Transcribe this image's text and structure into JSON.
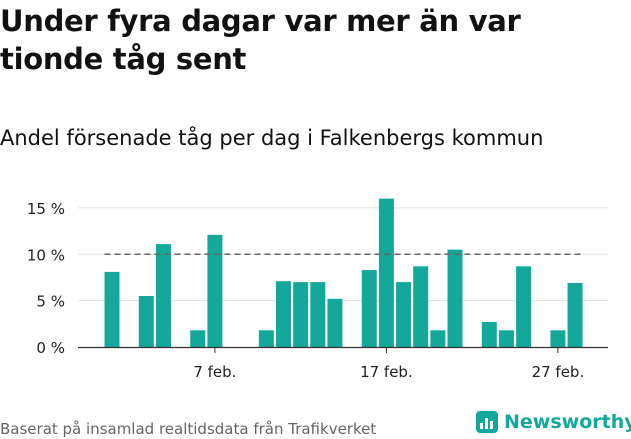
{
  "title": "Under fyra dagar var mer än var tionde tåg sent",
  "subtitle": "Andel försenade tåg per dag i Falkenbergs kommun",
  "source": "Baserat på insamlad realtidsdata från Trafikverket",
  "brand": {
    "name": "Newsworthy",
    "icon": "newsworthy-chart-icon"
  },
  "colors": {
    "bar": "#14a89a",
    "threshold": "#666666",
    "grid": "#e3e3e3",
    "axis": "#333333",
    "brand": "#14a89a"
  },
  "chart_data": {
    "type": "bar",
    "title": "Andel försenade tåg per dag i Falkenbergs kommun",
    "x": [
      "2/1",
      "2/2",
      "2/3",
      "2/4",
      "2/5",
      "2/6",
      "2/7",
      "2/8",
      "2/9",
      "2/10",
      "2/11",
      "2/12",
      "2/13",
      "2/14",
      "2/15",
      "2/16",
      "2/17",
      "2/18",
      "2/19",
      "2/20",
      "2/21",
      "2/22",
      "2/23",
      "2/24",
      "2/25",
      "2/26",
      "2/27",
      "2/28"
    ],
    "values": [
      8.1,
      null,
      5.5,
      11.1,
      null,
      1.8,
      12.1,
      null,
      null,
      1.8,
      7.1,
      7.0,
      7.0,
      5.2,
      null,
      8.3,
      16.0,
      7.0,
      8.7,
      1.8,
      10.5,
      null,
      2.7,
      1.8,
      8.7,
      null,
      1.8,
      6.9
    ],
    "x_ticks": [
      "7 feb.",
      "17 feb.",
      "27 feb."
    ],
    "y_ticks": [
      "0 %",
      "5 %",
      "10 %",
      "15 %"
    ],
    "y_tick_values": [
      0,
      5,
      10,
      15
    ],
    "ylim": [
      0,
      16.5
    ],
    "reference_line": {
      "value": 10,
      "style": "dashed"
    },
    "grid": true
  }
}
